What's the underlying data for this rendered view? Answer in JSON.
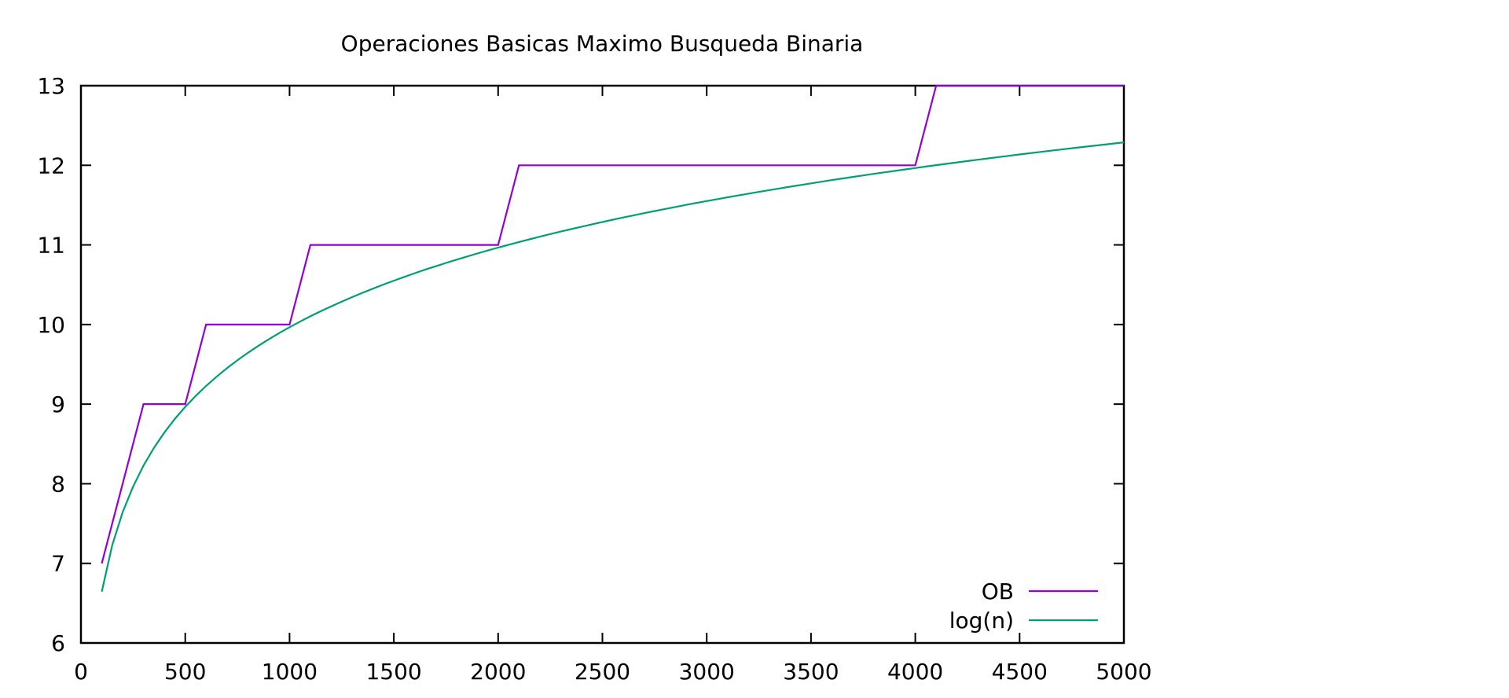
{
  "chart_data": {
    "type": "line",
    "title": "Operaciones Basicas Maximo Busqueda Binaria",
    "xlabel": "",
    "ylabel": "",
    "xlim": [
      0,
      5000
    ],
    "ylim": [
      6,
      13
    ],
    "xticks": [
      0,
      500,
      1000,
      1500,
      2000,
      2500,
      3000,
      3500,
      4000,
      4500,
      5000
    ],
    "yticks": [
      6,
      7,
      8,
      9,
      10,
      11,
      12,
      13
    ],
    "grid": false,
    "legend_position": "bottom-right",
    "series": [
      {
        "name": "OB",
        "color": "#9400d3",
        "x": [
          100,
          300,
          500,
          600,
          1000,
          1100,
          2000,
          2100,
          4000,
          4100,
          5000
        ],
        "y": [
          7,
          9,
          9,
          10,
          10,
          11,
          11,
          12,
          12,
          13,
          13
        ]
      },
      {
        "name": "log(n)",
        "color": "#009e73",
        "function": "log2(n)",
        "x_start": 100,
        "x_end": 5000
      }
    ]
  }
}
